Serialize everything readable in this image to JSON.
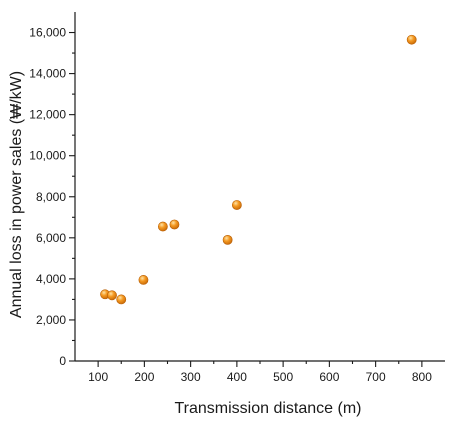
{
  "chart_data": {
    "type": "scatter",
    "title": "",
    "xlabel": "Transmission distance (m)",
    "ylabel": "Annual loss in power sales (₩/kW)",
    "xlim": [
      50,
      850
    ],
    "ylim": [
      0,
      17000
    ],
    "x_ticks": [
      100,
      200,
      300,
      400,
      500,
      600,
      700,
      800
    ],
    "x_tick_labels": [
      "100",
      "200",
      "300",
      "400",
      "500",
      "600",
      "700",
      "800"
    ],
    "y_ticks": [
      0,
      2000,
      4000,
      6000,
      8000,
      10000,
      12000,
      14000,
      16000
    ],
    "y_tick_labels": [
      "0",
      "2,000",
      "4,000",
      "6,000",
      "8,000",
      "10,000",
      "12,000",
      "14,000",
      "16,000"
    ],
    "grid": false,
    "marker_color": "#f0921c",
    "series": [
      {
        "points": [
          {
            "x": 115,
            "y": 3250
          },
          {
            "x": 130,
            "y": 3200
          },
          {
            "x": 150,
            "y": 3000
          },
          {
            "x": 198,
            "y": 3950
          },
          {
            "x": 240,
            "y": 6550
          },
          {
            "x": 265,
            "y": 6650
          },
          {
            "x": 380,
            "y": 5900
          },
          {
            "x": 400,
            "y": 7600
          },
          {
            "x": 778,
            "y": 15650
          }
        ]
      }
    ]
  }
}
